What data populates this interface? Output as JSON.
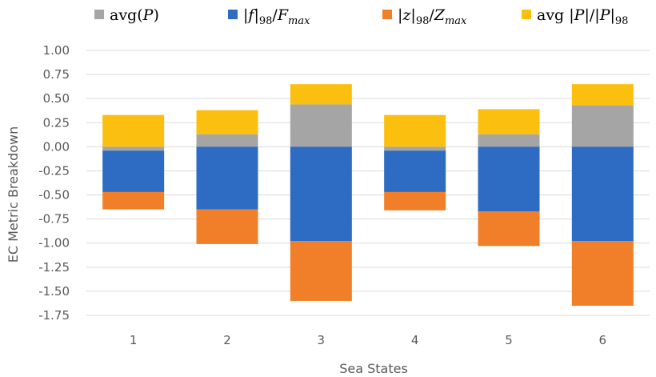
{
  "chart_data": {
    "type": "bar",
    "stacked": true,
    "title": "",
    "xlabel": "Sea States",
    "ylabel": "EC Metric Breakdown",
    "categories": [
      "1",
      "2",
      "3",
      "4",
      "5",
      "6"
    ],
    "ylim": [
      -1.75,
      1.0
    ],
    "yticks": [
      1.0,
      0.75,
      0.5,
      0.25,
      0.0,
      -0.25,
      -0.5,
      -0.75,
      -1.0,
      -1.25,
      -1.5,
      -1.75
    ],
    "ytick_labels": [
      "1.00",
      "0.75",
      "0.50",
      "0.25",
      "0.00",
      "-0.25",
      "-0.50",
      "-0.75",
      "-1.00",
      "-1.25",
      "-1.50",
      "-1.75"
    ],
    "grid": true,
    "legend_position": "top",
    "series": [
      {
        "name": "avg(P)",
        "color": "#a5a5a5",
        "values": [
          -0.04,
          0.13,
          0.44,
          -0.04,
          0.13,
          0.43
        ]
      },
      {
        "name": "|f|98/Fmax",
        "color": "#2e6bc2",
        "values": [
          -0.43,
          -0.65,
          -0.98,
          -0.43,
          -0.67,
          -0.98
        ]
      },
      {
        "name": "|z|98/Zmax",
        "color": "#f17f2a",
        "values": [
          -0.18,
          -0.36,
          -0.62,
          -0.19,
          -0.36,
          -0.67
        ]
      },
      {
        "name": "avg|P|/|P|98",
        "color": "#fbbf0f",
        "values": [
          0.33,
          0.25,
          0.21,
          0.33,
          0.26,
          0.22
        ]
      }
    ],
    "legend": [
      {
        "main": "avg(",
        "italic": "P",
        "after": ")"
      },
      {
        "main": "|",
        "italic": "f",
        "after": "|",
        "sub": "98",
        "slash": "/",
        "italic2": "F",
        "sub2": "max"
      },
      {
        "main": "|",
        "italic": "z",
        "after": "|",
        "sub": "98",
        "slash": "/",
        "italic2": "Z",
        "sub2": "max"
      },
      {
        "main": "avg |",
        "italic": "P",
        "after": "|/|",
        "italic2b": "P",
        "after2": "|",
        "sub": "98"
      }
    ]
  }
}
